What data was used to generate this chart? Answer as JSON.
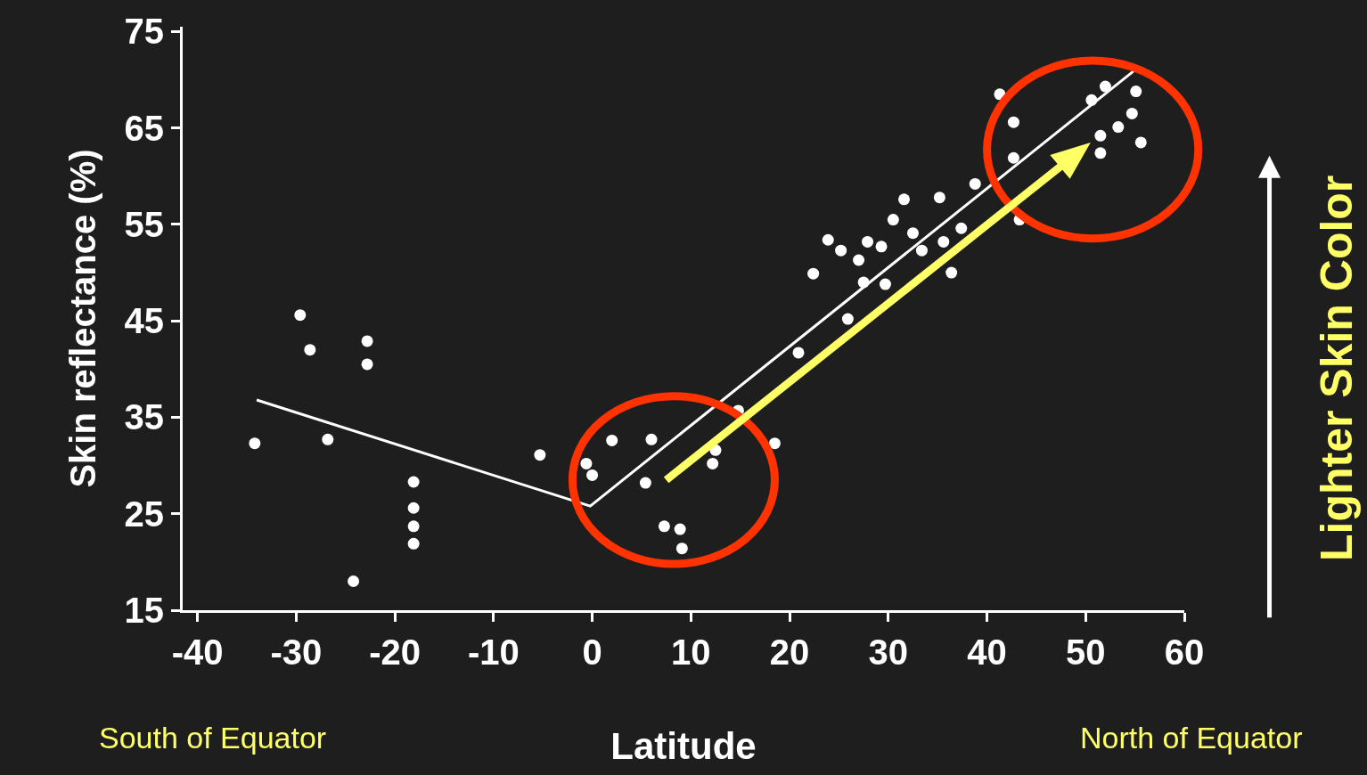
{
  "chart_data": {
    "type": "scatter",
    "xlabel": "Latitude",
    "ylabel": "Skin reflectance (%)",
    "xlim": [
      -41.5,
      60
    ],
    "ylim": [
      15,
      75.5
    ],
    "xticks": [
      -40,
      -30,
      -20,
      -10,
      0,
      10,
      20,
      30,
      40,
      50,
      60
    ],
    "yticks": [
      15,
      25,
      35,
      45,
      55,
      65,
      75
    ],
    "annotations": [
      "South of Equator",
      "North of Equator",
      "Lighter Skin Color"
    ],
    "series": [
      {
        "type": "scatter",
        "marker": "circle",
        "color": "#ffffff",
        "x": [
          -34.2,
          -29.6,
          -28.6,
          -26.8,
          -24.2,
          -22.8,
          -22.8,
          -18.1,
          -18.1,
          -18.1,
          -18.1,
          -5.3,
          -0.6,
          0,
          2.0,
          6.0,
          5.4,
          7.3,
          8.9,
          9.1,
          12.2,
          12.5,
          14.8,
          18.5,
          20.9,
          22.4,
          23.9,
          25.9,
          25.2,
          27.0,
          27.5,
          27.9,
          29.3,
          29.7,
          30.5,
          31.6,
          32.5,
          33.4,
          35.2,
          35.6,
          36.4,
          37.4,
          38.8,
          41.3,
          42.7,
          42.7,
          43.3,
          50.6,
          51.5,
          51.5,
          53.3,
          54.7,
          55.1,
          55.6,
          52.0
        ],
        "values": [
          32.3,
          45.6,
          42.0,
          32.7,
          18.0,
          42.9,
          40.5,
          28.3,
          25.6,
          23.7,
          21.9,
          31.1,
          30.2,
          29.0,
          32.6,
          32.7,
          28.2,
          23.7,
          23.4,
          21.4,
          30.2,
          31.6,
          35.7,
          32.3,
          41.7,
          49.9,
          53.4,
          45.2,
          52.3,
          51.3,
          49.0,
          53.2,
          52.7,
          48.8,
          55.5,
          57.6,
          54.1,
          52.3,
          57.8,
          53.2,
          50.0,
          54.6,
          59.2,
          68.5,
          65.6,
          61.9,
          55.5,
          67.9,
          64.2,
          62.4,
          65.1,
          66.5,
          68.8,
          63.5,
          69.3
        ]
      },
      {
        "type": "line",
        "marker": "none",
        "line_style": "solid",
        "color": "#ffffff",
        "x": [
          -34.0,
          -0.2,
          55.1
        ],
        "values": [
          36.8,
          25.8,
          71.1
        ]
      }
    ]
  }
}
